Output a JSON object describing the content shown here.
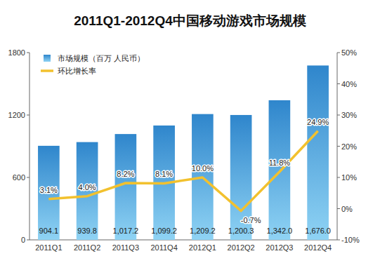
{
  "chart_data": {
    "type": "bar",
    "title": "2011Q1-2012Q4中国移动游戏市场规模",
    "categories": [
      "2011Q1",
      "2011Q2",
      "2011Q3",
      "2011Q4",
      "2012Q1",
      "2012Q2",
      "2012Q3",
      "2012Q4"
    ],
    "series": [
      {
        "name": "市场规模（百万 人民币）",
        "type": "bar",
        "color": "#2f86cc",
        "values": [
          904.1,
          939.8,
          1017.2,
          1099.2,
          1209.2,
          1200.3,
          1342.0,
          1676.0
        ],
        "value_labels": [
          "904.1",
          "939.8",
          "1,017.2",
          "1,099.2",
          "1,209.2",
          "1,200.3",
          "1,342.0",
          "1,676.0"
        ]
      },
      {
        "name": "环比增长率",
        "type": "line",
        "axis": "y2",
        "color": "#f2c12e",
        "values": [
          3.1,
          4.0,
          8.2,
          8.1,
          10.0,
          -0.7,
          11.8,
          24.9
        ],
        "value_labels": [
          "3.1%",
          "4.0%",
          "8.2%",
          "8.1%",
          "10.0%",
          "-0.7%",
          "11.8%",
          "24.9%"
        ]
      }
    ],
    "ylim": [
      0,
      1800
    ],
    "yticks": [
      0,
      600,
      1200,
      1800
    ],
    "y2lim": [
      -10,
      50
    ],
    "y2ticks": [
      {
        "value": -10,
        "label": "-10%"
      },
      {
        "value": 0,
        "label": "0%"
      },
      {
        "value": 10,
        "label": "10%"
      },
      {
        "value": 20,
        "label": "20%"
      },
      {
        "value": 30,
        "label": "30%"
      },
      {
        "value": 40,
        "label": "40%"
      },
      {
        "value": 50,
        "label": "50%"
      }
    ],
    "grid": false,
    "legend": "top-left",
    "data_labels": true
  }
}
